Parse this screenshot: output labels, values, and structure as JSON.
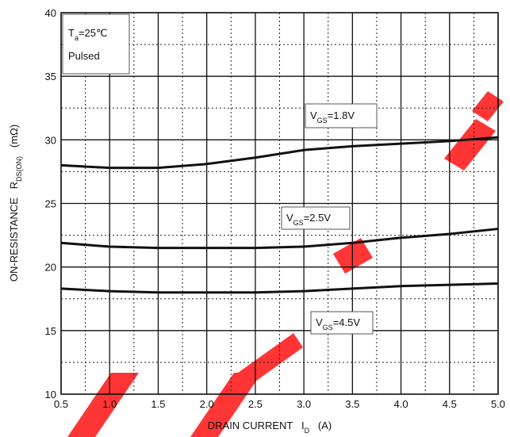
{
  "chart_data": {
    "type": "line",
    "x_label_parts": [
      {
        "text": "DRAIN CURRENT   I"
      },
      {
        "text": "D",
        "sub": true
      },
      {
        "text": "   (A)"
      }
    ],
    "y_label_parts": [
      {
        "text": "ON-RESISTANCE   R"
      },
      {
        "text": "DS(ON)",
        "sub": true
      },
      {
        "text": "   (mΩ)"
      }
    ],
    "annotation_parts": [
      {
        "text": "T"
      },
      {
        "text": "a",
        "sub": true
      },
      {
        "text": "=25℃"
      }
    ],
    "annotation_line2": "Pulsed",
    "x": [
      0.5,
      1.0,
      1.5,
      2.0,
      2.5,
      3.0,
      3.5,
      4.0,
      4.5,
      5.0
    ],
    "series": [
      {
        "name_parts": [
          {
            "text": "V"
          },
          {
            "text": "GS",
            "sub": true
          },
          {
            "text": "=1.8V"
          }
        ],
        "color": "#111111",
        "values": [
          28.0,
          27.8,
          27.8,
          28.1,
          28.6,
          29.2,
          29.5,
          29.7,
          29.9,
          30.2
        ]
      },
      {
        "name_parts": [
          {
            "text": "V"
          },
          {
            "text": "GS",
            "sub": true
          },
          {
            "text": "=2.5V"
          }
        ],
        "color": "#111111",
        "values": [
          21.9,
          21.6,
          21.5,
          21.5,
          21.5,
          21.6,
          21.9,
          22.3,
          22.6,
          23.0
        ]
      },
      {
        "name_parts": [
          {
            "text": "V"
          },
          {
            "text": "GS",
            "sub": true
          },
          {
            "text": "=4.5V"
          }
        ],
        "color": "#111111",
        "values": [
          18.3,
          18.1,
          18.0,
          18.0,
          18.0,
          18.1,
          18.3,
          18.5,
          18.6,
          18.7
        ]
      }
    ],
    "xlim": [
      0.5,
      5.0
    ],
    "ylim": [
      10,
      40
    ],
    "xticks": [
      0.5,
      {
        "value": 1,
        "label": "1.0"
      },
      1.5,
      {
        "value": 2,
        "label": "2.0"
      },
      2.5,
      {
        "value": 3,
        "label": "3.0"
      },
      3.5,
      {
        "value": 4,
        "label": "4.0"
      },
      4.5,
      {
        "value": 5,
        "label": "5.0"
      }
    ],
    "yticks": [
      10,
      15,
      20,
      25,
      30,
      35,
      40
    ],
    "minor_xticks": [
      0.75,
      1.25,
      1.75,
      2.25,
      2.75,
      3.25,
      3.75,
      4.25,
      4.75
    ],
    "minor_yticks": [
      12.5,
      17.5,
      22.5,
      27.5,
      32.5,
      37.5
    ],
    "grid": true
  }
}
